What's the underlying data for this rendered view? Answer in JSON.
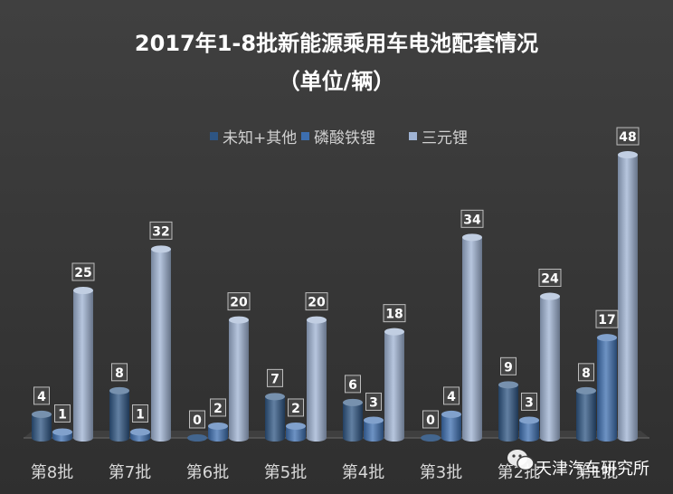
{
  "chart_data": {
    "type": "bar",
    "title": "2017年1-8批新能源乘用车电池配套情况",
    "subtitle": "（单位/辆）",
    "categories": [
      "第8批",
      "第7批",
      "第6批",
      "第5批",
      "第4批",
      "第3批",
      "第2批",
      "第1批"
    ],
    "series": [
      {
        "name": "未知+其他",
        "color": "#2e5583",
        "values": [
          4,
          8,
          0,
          7,
          6,
          0,
          9,
          8
        ]
      },
      {
        "name": "磷酸铁锂",
        "color": "#3d6fb0",
        "values": [
          1,
          1,
          2,
          2,
          3,
          4,
          3,
          17
        ]
      },
      {
        "name": "三元锂",
        "color": "#9fb3d3",
        "values": [
          25,
          32,
          20,
          20,
          18,
          34,
          24,
          48
        ]
      }
    ],
    "ylim": [
      0,
      50
    ],
    "grid": false,
    "legend_position": "top",
    "style": "3d-cylinder"
  },
  "watermark": {
    "text": "天津汽车研究所",
    "icon": "wechat-icon"
  }
}
